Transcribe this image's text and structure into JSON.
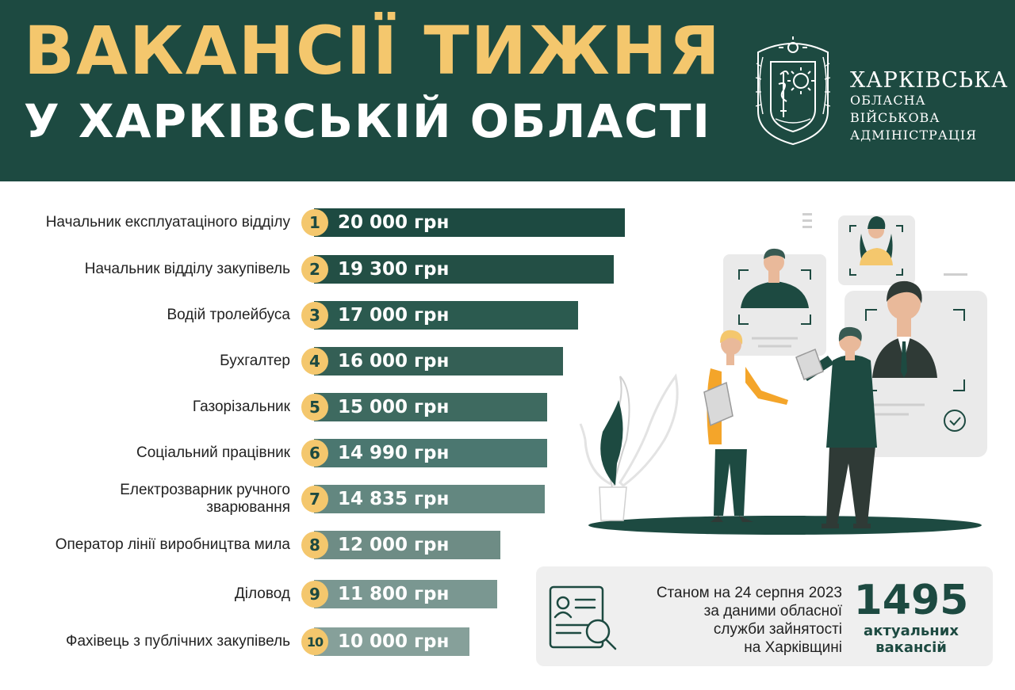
{
  "header": {
    "title_line1": "ВАКАНСІЇ ТИЖНЯ",
    "title_line2": "У ХАРКІВСЬКІЙ ОБЛАСТІ",
    "org_line1": "ХАРКІВСЬКА",
    "org_line2": "ОБЛАСНА ВІЙСЬКОВА",
    "org_line3": "АДМІНІСТРАЦІЯ"
  },
  "chart_data": {
    "type": "bar",
    "orientation": "horizontal",
    "categories": [
      [
        "Начальник експлуатаціного відділу"
      ],
      [
        "Начальник відділу закупівель"
      ],
      [
        "Водій тролейбуса"
      ],
      [
        "Бухгалтер"
      ],
      [
        "Газорізальник"
      ],
      [
        "Соціальний працівник"
      ],
      [
        "Електрозварник ручного",
        "зварювання"
      ],
      [
        "Оператор лінії виробництва мила"
      ],
      [
        "Діловод"
      ],
      [
        "Фахівець з публічних закупівель"
      ]
    ],
    "ranks": [
      "1",
      "2",
      "3",
      "4",
      "5",
      "6",
      "7",
      "8",
      "9",
      "10"
    ],
    "values": [
      20000,
      19300,
      17000,
      16000,
      15000,
      14990,
      14835,
      12000,
      11800,
      10000
    ],
    "value_labels": [
      "20 000 грн",
      "19 300 грн",
      "17 000 грн",
      "16 000 грн",
      "15 000 грн",
      "14 990 грн",
      "14 835 грн",
      "12 000 грн",
      "11 800 грн",
      "10 000 грн"
    ],
    "unit": "грн",
    "bar_colors": [
      "#1d4a41",
      "#234f45",
      "#2b5a4f",
      "#345f55",
      "#3e6a60",
      "#4b7770",
      "#638780",
      "#6e8c85",
      "#7a9791",
      "#86a09a"
    ],
    "rank_badge_color": "#f4c76d"
  },
  "info": {
    "lines": [
      "Станом на 24 серпня 2023",
      "за даними обласної",
      "служби зайнятості",
      "на Харківщині"
    ],
    "count": "1495",
    "count_label_lines": [
      "актуальних",
      "вакансій"
    ]
  },
  "colors": {
    "primary": "#1d4a41",
    "accent": "#f4c76d",
    "panel": "#efefef"
  },
  "icons": {
    "emblem": "kharkiv-region-coat-of-arms",
    "info": "document-magnifier-icon"
  }
}
